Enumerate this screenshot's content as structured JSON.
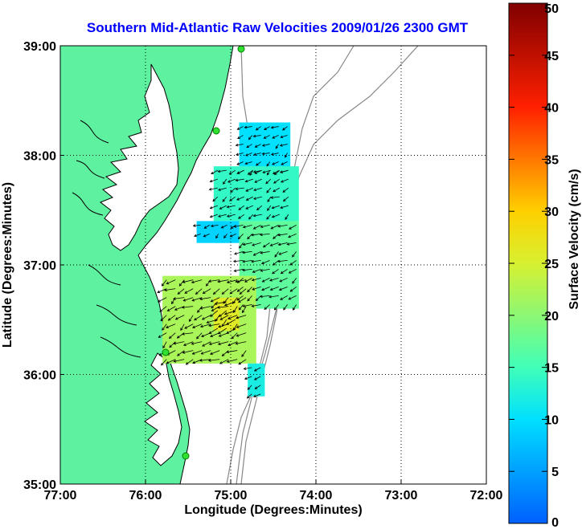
{
  "chart_data": {
    "type": "vector_field_map",
    "title": "Southern Mid-Atlantic Raw Velocities 2009/01/26 2300 GMT",
    "xlabel": "Longitude (Degrees:Minutes)",
    "ylabel": "Latitude (Degrees:Minutes)",
    "x_ticks": [
      "77:00",
      "76:00",
      "75:00",
      "74:00",
      "73:00",
      "72:00"
    ],
    "y_ticks": [
      "39:00",
      "38:00",
      "37:00",
      "36:00",
      "35:00"
    ],
    "xlim": [
      -77,
      -72
    ],
    "ylim": [
      35,
      39
    ],
    "grid": true,
    "colorbar": {
      "label": "Surface Velocity (cm/s)",
      "range": [
        0,
        50
      ],
      "ticks": [
        "0",
        "5",
        "10",
        "15",
        "20",
        "25",
        "30",
        "35",
        "40",
        "45",
        "50"
      ]
    },
    "land_color": "#5ef2a0",
    "velocity_regions": [
      {
        "lon_range": [
          -74.9,
          -74.3
        ],
        "lat_range": [
          37.8,
          38.3
        ],
        "speed": 10
      },
      {
        "lon_range": [
          -75.2,
          -74.2
        ],
        "lat_range": [
          37.4,
          37.9
        ],
        "speed": 14
      },
      {
        "lon_range": [
          -75.4,
          -74.9
        ],
        "lat_range": [
          37.2,
          37.4
        ],
        "speed": 9
      },
      {
        "lon_range": [
          -74.9,
          -74.2
        ],
        "lat_range": [
          36.6,
          37.4
        ],
        "speed": 17
      },
      {
        "lon_range": [
          -75.8,
          -74.7
        ],
        "lat_range": [
          36.1,
          36.9
        ],
        "speed": 22
      },
      {
        "lon_range": [
          -75.2,
          -74.9
        ],
        "lat_range": [
          36.4,
          36.7
        ],
        "speed": 26
      },
      {
        "lon_range": [
          -74.8,
          -74.6
        ],
        "lat_range": [
          35.8,
          36.1
        ],
        "speed": 12
      }
    ]
  }
}
